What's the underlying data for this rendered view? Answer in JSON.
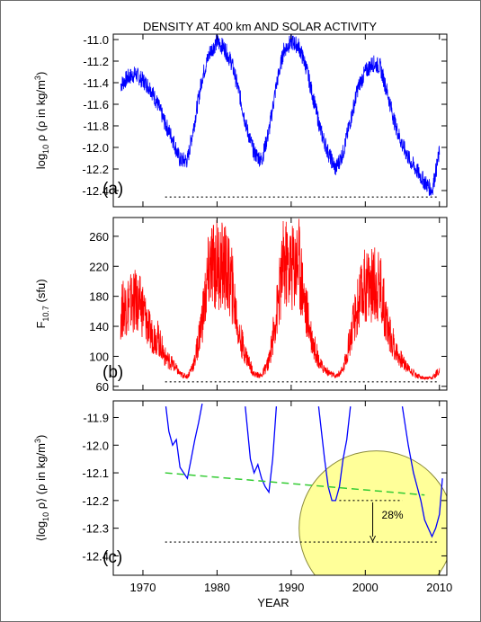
{
  "title": "DENSITY AT 400 km AND SOLAR ACTIVITY",
  "x_axis_label": "YEAR",
  "colors": {
    "density": "#0000ff",
    "f107": "#ff0000",
    "trend_line": "#33cc33",
    "highlight_circle": "#ffff99",
    "reference_line": "#000000"
  },
  "chart_data": [
    {
      "panel_label": "(a)",
      "type": "line",
      "ylabel": {
        "prefix": "log",
        "sub": "10",
        "suffix": " ρ (ρ in kg/m",
        "sup": "3",
        "end": ")"
      },
      "xlim": [
        1966,
        2011
      ],
      "ylim": [
        -12.55,
        -10.95
      ],
      "yticks": [
        "-11.0",
        "-11.2",
        "-11.4",
        "-11.6",
        "-11.8",
        "-12.0",
        "-12.2",
        "-12.4"
      ],
      "xticks": [
        1970,
        1980,
        1990,
        2000,
        2010
      ],
      "reference_line": {
        "y": -12.46,
        "x_range": [
          1973,
          2010
        ]
      },
      "series": [
        {
          "color": "#0000ff",
          "x": [
            1967,
            1968,
            1969,
            1970,
            1971,
            1972,
            1973,
            1974,
            1975,
            1976,
            1977,
            1978,
            1979,
            1980,
            1981,
            1982,
            1983,
            1984,
            1985,
            1986,
            1987,
            1988,
            1989,
            1990,
            1991,
            1992,
            1993,
            1994,
            1995,
            1996,
            1997,
            1998,
            1999,
            2000,
            2001,
            2002,
            2003,
            2004,
            2005,
            2006,
            2007,
            2008,
            2009,
            2010
          ],
          "y": [
            -11.42,
            -11.35,
            -11.32,
            -11.38,
            -11.45,
            -11.6,
            -11.78,
            -11.92,
            -12.12,
            -12.12,
            -11.75,
            -11.35,
            -11.12,
            -11.02,
            -11.08,
            -11.22,
            -11.5,
            -11.82,
            -12.05,
            -12.12,
            -11.85,
            -11.42,
            -11.1,
            -11.02,
            -11.06,
            -11.25,
            -11.55,
            -11.85,
            -12.05,
            -12.2,
            -12.05,
            -11.75,
            -11.45,
            -11.3,
            -11.22,
            -11.25,
            -11.5,
            -11.78,
            -11.98,
            -12.12,
            -12.22,
            -12.32,
            -12.4,
            -12.05
          ]
        }
      ]
    },
    {
      "panel_label": "(b)",
      "type": "line",
      "ylabel": {
        "prefix": "F",
        "sub": "10.7",
        "suffix": " (sfu)",
        "sup": "",
        "end": ""
      },
      "xlim": [
        1966,
        2011
      ],
      "ylim": [
        55,
        285
      ],
      "yticks": [
        "260",
        "220",
        "180",
        "140",
        "100",
        "60"
      ],
      "xticks": [
        1970,
        1980,
        1990,
        2000,
        2010
      ],
      "reference_line": {
        "y": 66,
        "x_range": [
          1973,
          2010
        ]
      },
      "series": [
        {
          "color": "#ff0000",
          "x": [
            1967,
            1968,
            1969,
            1970,
            1971,
            1972,
            1973,
            1974,
            1975,
            1976,
            1977,
            1978,
            1979,
            1980,
            1981,
            1982,
            1983,
            1984,
            1985,
            1986,
            1987,
            1988,
            1989,
            1990,
            1991,
            1992,
            1993,
            1994,
            1995,
            1996,
            1997,
            1998,
            1999,
            2000,
            2001,
            2002,
            2003,
            2004,
            2005,
            2006,
            2007,
            2008,
            2009,
            2010
          ],
          "y": [
            148,
            158,
            160,
            152,
            122,
            118,
            95,
            87,
            75,
            72,
            90,
            140,
            200,
            205,
            200,
            180,
            120,
            95,
            75,
            73,
            90,
            145,
            205,
            200,
            210,
            150,
            110,
            85,
            77,
            72,
            80,
            118,
            155,
            180,
            180,
            180,
            130,
            105,
            90,
            80,
            73,
            70,
            70,
            80
          ]
        }
      ]
    },
    {
      "panel_label": "(c)",
      "type": "line",
      "ylabel": {
        "prefix": "⟨log",
        "sub": "10",
        "suffix": " ρ⟩ (ρ in kg/m",
        "sup": "3",
        "end": ")"
      },
      "xlim": [
        1966,
        2011
      ],
      "ylim": [
        -12.47,
        -11.84
      ],
      "yticks": [
        "-11.9",
        "-12.0",
        "-12.1",
        "-12.2",
        "-12.3",
        "-12.4"
      ],
      "xticks": [
        1970,
        1980,
        1990,
        2000,
        2010
      ],
      "reference_line": {
        "y": -12.35,
        "x_range": [
          1973,
          2010
        ]
      },
      "trend_line": {
        "x": [
          1973,
          2008
        ],
        "y": [
          -12.1,
          -12.18
        ]
      },
      "highlight_circle": {
        "center": [
          2001.5,
          -12.3
        ],
        "note": "yellow circle highlighting the 2008-2009 minimum"
      },
      "annotation": {
        "text": "28%",
        "x": 2001,
        "y_from": -12.2,
        "y_to": -12.35
      },
      "series": [
        {
          "color": "#0000ff",
          "segments": [
            {
              "x": [
                1973.1,
                1973.5,
                1974.0,
                1974.5,
                1975.0,
                1975.5,
                1976.0,
                1976.5,
                1977.0,
                1977.5,
                1978.0
              ],
              "y": [
                -11.86,
                -11.95,
                -12.0,
                -11.98,
                -12.08,
                -12.1,
                -12.12,
                -12.05,
                -11.98,
                -11.92,
                -11.85
              ]
            },
            {
              "x": [
                1983.8,
                1984.5,
                1985.0,
                1985.5,
                1986.0,
                1986.5,
                1987.0,
                1987.5,
                1988.0
              ],
              "y": [
                -11.86,
                -12.05,
                -12.1,
                -12.07,
                -12.12,
                -12.15,
                -12.17,
                -12.05,
                -11.86
              ]
            },
            {
              "x": [
                1993.7,
                1994.5,
                1995.0,
                1995.5,
                1996.0,
                1996.5,
                1997.0,
                1997.5,
                1998.0
              ],
              "y": [
                -11.86,
                -12.05,
                -12.15,
                -12.2,
                -12.2,
                -12.15,
                -12.05,
                -11.98,
                -11.86
              ]
            },
            {
              "x": [
                2005.0,
                2005.8,
                2006.5,
                2007.0,
                2007.5,
                2008.0,
                2008.5,
                2009.0,
                2009.5,
                2010.0,
                2010.4
              ],
              "y": [
                -11.86,
                -12.0,
                -12.1,
                -12.15,
                -12.2,
                -12.27,
                -12.3,
                -12.33,
                -12.3,
                -12.25,
                -12.12
              ]
            }
          ]
        }
      ]
    }
  ]
}
